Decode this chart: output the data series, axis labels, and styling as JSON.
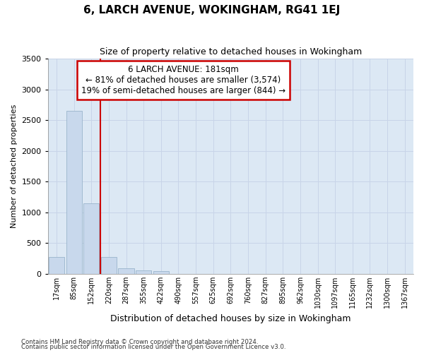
{
  "title": "6, LARCH AVENUE, WOKINGHAM, RG41 1EJ",
  "subtitle": "Size of property relative to detached houses in Wokingham",
  "xlabel": "Distribution of detached houses by size in Wokingham",
  "ylabel": "Number of detached properties",
  "categories": [
    "17sqm",
    "85sqm",
    "152sqm",
    "220sqm",
    "287sqm",
    "355sqm",
    "422sqm",
    "490sqm",
    "557sqm",
    "625sqm",
    "692sqm",
    "760sqm",
    "827sqm",
    "895sqm",
    "962sqm",
    "1030sqm",
    "1097sqm",
    "1165sqm",
    "1232sqm",
    "1300sqm",
    "1367sqm"
  ],
  "values": [
    270,
    2650,
    1150,
    275,
    90,
    55,
    40,
    0,
    0,
    0,
    0,
    0,
    0,
    0,
    0,
    0,
    0,
    0,
    0,
    0,
    0
  ],
  "bar_color": "#c8d8ec",
  "bar_edge_color": "#9ab4cc",
  "vline_pos": 2.5,
  "vline_color": "#cc0000",
  "annotation_text": "6 LARCH AVENUE: 181sqm\n← 81% of detached houses are smaller (3,574)\n19% of semi-detached houses are larger (844) →",
  "annotation_box_color": "#ffffff",
  "annotation_edge_color": "#cc0000",
  "ylim": [
    0,
    3500
  ],
  "yticks": [
    0,
    500,
    1000,
    1500,
    2000,
    2500,
    3000,
    3500
  ],
  "grid_color": "#c8d4e8",
  "background_color": "#dce8f4",
  "footer_line1": "Contains HM Land Registry data © Crown copyright and database right 2024.",
  "footer_line2": "Contains public sector information licensed under the Open Government Licence v3.0."
}
